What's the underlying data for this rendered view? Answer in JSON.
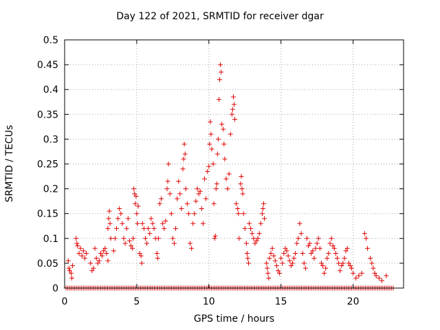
{
  "chart_data": {
    "type": "scatter",
    "title": "Day 122 of 2021, SRMTID for receiver dgar",
    "xlabel": "GPS time / hours",
    "ylabel": "SRMTID / TECUs",
    "xlim": [
      0,
      23.5
    ],
    "ylim": [
      0,
      0.5
    ],
    "xticks": [
      0,
      5,
      10,
      15,
      20
    ],
    "yticks": [
      0,
      0.05,
      0.1,
      0.15,
      0.2,
      0.25,
      0.3,
      0.35,
      0.4,
      0.45,
      0.5
    ],
    "ytick_labels": [
      "0",
      "0.05",
      "0.1",
      "0.15",
      "0.2",
      "0.25",
      "0.3",
      "0.35",
      "0.4",
      "0.45",
      "0.5"
    ],
    "grid": true,
    "marker": "+",
    "color": "#e00000",
    "series": [
      {
        "name": "SRMTID",
        "points": [
          [
            0.25,
            0.055
          ],
          [
            0.3,
            0.04
          ],
          [
            0.35,
            0.035
          ],
          [
            0.45,
            0.03
          ],
          [
            0.5,
            0.02
          ],
          [
            0.55,
            0.045
          ],
          [
            0.8,
            0.1
          ],
          [
            0.85,
            0.09
          ],
          [
            0.9,
            0.085
          ],
          [
            1.0,
            0.07
          ],
          [
            1.1,
            0.08
          ],
          [
            1.2,
            0.065
          ],
          [
            1.3,
            0.075
          ],
          [
            1.4,
            0.06
          ],
          [
            1.5,
            0.07
          ],
          [
            1.8,
            0.05
          ],
          [
            1.9,
            0.035
          ],
          [
            2.0,
            0.04
          ],
          [
            2.1,
            0.08
          ],
          [
            2.2,
            0.06
          ],
          [
            2.3,
            0.05
          ],
          [
            2.4,
            0.055
          ],
          [
            2.5,
            0.07
          ],
          [
            2.6,
            0.065
          ],
          [
            2.7,
            0.075
          ],
          [
            2.8,
            0.08
          ],
          [
            2.9,
            0.07
          ],
          [
            3.0,
            0.055
          ],
          [
            3.0,
            0.12
          ],
          [
            3.05,
            0.14
          ],
          [
            3.1,
            0.155
          ],
          [
            3.15,
            0.13
          ],
          [
            3.2,
            0.1
          ],
          [
            3.4,
            0.075
          ],
          [
            3.5,
            0.1
          ],
          [
            3.6,
            0.12
          ],
          [
            3.7,
            0.14
          ],
          [
            3.8,
            0.16
          ],
          [
            3.9,
            0.15
          ],
          [
            4.0,
            0.13
          ],
          [
            4.1,
            0.1
          ],
          [
            4.2,
            0.09
          ],
          [
            4.3,
            0.12
          ],
          [
            4.4,
            0.14
          ],
          [
            4.5,
            0.095
          ],
          [
            4.6,
            0.085
          ],
          [
            4.7,
            0.08
          ],
          [
            4.75,
            0.1
          ],
          [
            4.8,
            0.2
          ],
          [
            4.85,
            0.19
          ],
          [
            4.9,
            0.17
          ],
          [
            4.95,
            0.185
          ],
          [
            5.0,
            0.15
          ],
          [
            5.05,
            0.13
          ],
          [
            5.1,
            0.165
          ],
          [
            5.2,
            0.07
          ],
          [
            5.3,
            0.065
          ],
          [
            5.35,
            0.05
          ],
          [
            5.4,
            0.13
          ],
          [
            5.5,
            0.12
          ],
          [
            5.6,
            0.1
          ],
          [
            5.7,
            0.09
          ],
          [
            5.8,
            0.12
          ],
          [
            5.9,
            0.11
          ],
          [
            6.0,
            0.14
          ],
          [
            6.1,
            0.13
          ],
          [
            6.2,
            0.12
          ],
          [
            6.3,
            0.1
          ],
          [
            6.4,
            0.07
          ],
          [
            6.45,
            0.06
          ],
          [
            6.5,
            0.1
          ],
          [
            6.6,
            0.17
          ],
          [
            6.7,
            0.18
          ],
          [
            6.8,
            0.13
          ],
          [
            6.9,
            0.12
          ],
          [
            7.0,
            0.135
          ],
          [
            7.1,
            0.2
          ],
          [
            7.15,
            0.215
          ],
          [
            7.2,
            0.25
          ],
          [
            7.3,
            0.19
          ],
          [
            7.4,
            0.15
          ],
          [
            7.5,
            0.1
          ],
          [
            7.6,
            0.09
          ],
          [
            7.7,
            0.12
          ],
          [
            7.8,
            0.18
          ],
          [
            7.9,
            0.215
          ],
          [
            8.0,
            0.19
          ],
          [
            8.1,
            0.16
          ],
          [
            8.2,
            0.24
          ],
          [
            8.25,
            0.26
          ],
          [
            8.3,
            0.29
          ],
          [
            8.35,
            0.27
          ],
          [
            8.4,
            0.2
          ],
          [
            8.5,
            0.17
          ],
          [
            8.6,
            0.15
          ],
          [
            8.7,
            0.09
          ],
          [
            8.8,
            0.08
          ],
          [
            8.9,
            0.13
          ],
          [
            9.0,
            0.15
          ],
          [
            9.1,
            0.175
          ],
          [
            9.2,
            0.2
          ],
          [
            9.3,
            0.19
          ],
          [
            9.4,
            0.195
          ],
          [
            9.5,
            0.16
          ],
          [
            9.6,
            0.13
          ],
          [
            9.7,
            0.22
          ],
          [
            9.8,
            0.18
          ],
          [
            9.9,
            0.235
          ],
          [
            10.0,
            0.245
          ],
          [
            10.05,
            0.29
          ],
          [
            10.1,
            0.335
          ],
          [
            10.15,
            0.31
          ],
          [
            10.2,
            0.28
          ],
          [
            10.3,
            0.25
          ],
          [
            10.35,
            0.17
          ],
          [
            10.4,
            0.1
          ],
          [
            10.45,
            0.105
          ],
          [
            10.5,
            0.2
          ],
          [
            10.55,
            0.21
          ],
          [
            10.6,
            0.27
          ],
          [
            10.65,
            0.3
          ],
          [
            10.7,
            0.38
          ],
          [
            10.75,
            0.42
          ],
          [
            10.8,
            0.45
          ],
          [
            10.85,
            0.435
          ],
          [
            10.9,
            0.33
          ],
          [
            11.0,
            0.32
          ],
          [
            11.05,
            0.29
          ],
          [
            11.1,
            0.26
          ],
          [
            11.2,
            0.22
          ],
          [
            11.3,
            0.2
          ],
          [
            11.4,
            0.23
          ],
          [
            11.5,
            0.31
          ],
          [
            11.6,
            0.35
          ],
          [
            11.65,
            0.36
          ],
          [
            11.7,
            0.385
          ],
          [
            11.75,
            0.37
          ],
          [
            11.8,
            0.34
          ],
          [
            11.9,
            0.17
          ],
          [
            12.0,
            0.16
          ],
          [
            12.05,
            0.15
          ],
          [
            12.1,
            0.1
          ],
          [
            12.2,
            0.21
          ],
          [
            12.25,
            0.225
          ],
          [
            12.3,
            0.2
          ],
          [
            12.35,
            0.19
          ],
          [
            12.4,
            0.15
          ],
          [
            12.5,
            0.12
          ],
          [
            12.6,
            0.09
          ],
          [
            12.65,
            0.07
          ],
          [
            12.7,
            0.06
          ],
          [
            12.75,
            0.05
          ],
          [
            12.8,
            0.13
          ],
          [
            12.9,
            0.12
          ],
          [
            13.0,
            0.11
          ],
          [
            13.1,
            0.1
          ],
          [
            13.2,
            0.09
          ],
          [
            13.3,
            0.095
          ],
          [
            13.4,
            0.1
          ],
          [
            13.5,
            0.11
          ],
          [
            13.6,
            0.13
          ],
          [
            13.7,
            0.15
          ],
          [
            13.75,
            0.16
          ],
          [
            13.8,
            0.17
          ],
          [
            13.85,
            0.14
          ],
          [
            14.0,
            0.05
          ],
          [
            14.05,
            0.04
          ],
          [
            14.1,
            0.03
          ],
          [
            14.15,
            0.02
          ],
          [
            14.2,
            0.06
          ],
          [
            14.3,
            0.07
          ],
          [
            14.4,
            0.08
          ],
          [
            14.5,
            0.065
          ],
          [
            14.6,
            0.055
          ],
          [
            14.7,
            0.045
          ],
          [
            14.8,
            0.035
          ],
          [
            14.9,
            0.03
          ],
          [
            15.0,
            0.06
          ],
          [
            15.1,
            0.05
          ],
          [
            15.2,
            0.07
          ],
          [
            15.3,
            0.08
          ],
          [
            15.4,
            0.075
          ],
          [
            15.5,
            0.065
          ],
          [
            15.6,
            0.055
          ],
          [
            15.7,
            0.045
          ],
          [
            15.8,
            0.05
          ],
          [
            15.9,
            0.06
          ],
          [
            16.0,
            0.07
          ],
          [
            16.1,
            0.09
          ],
          [
            16.2,
            0.1
          ],
          [
            16.3,
            0.13
          ],
          [
            16.4,
            0.11
          ],
          [
            16.5,
            0.07
          ],
          [
            16.6,
            0.05
          ],
          [
            16.7,
            0.04
          ],
          [
            16.8,
            0.1
          ],
          [
            16.9,
            0.085
          ],
          [
            17.0,
            0.09
          ],
          [
            17.1,
            0.07
          ],
          [
            17.2,
            0.075
          ],
          [
            17.3,
            0.06
          ],
          [
            17.4,
            0.08
          ],
          [
            17.5,
            0.09
          ],
          [
            17.6,
            0.1
          ],
          [
            17.7,
            0.08
          ],
          [
            17.8,
            0.05
          ],
          [
            17.9,
            0.045
          ],
          [
            18.0,
            0.03
          ],
          [
            18.1,
            0.04
          ],
          [
            18.2,
            0.06
          ],
          [
            18.3,
            0.07
          ],
          [
            18.4,
            0.09
          ],
          [
            18.5,
            0.1
          ],
          [
            18.6,
            0.085
          ],
          [
            18.7,
            0.08
          ],
          [
            18.8,
            0.07
          ],
          [
            18.9,
            0.06
          ],
          [
            19.0,
            0.05
          ],
          [
            19.1,
            0.035
          ],
          [
            19.2,
            0.045
          ],
          [
            19.3,
            0.05
          ],
          [
            19.4,
            0.06
          ],
          [
            19.5,
            0.075
          ],
          [
            19.6,
            0.08
          ],
          [
            19.7,
            0.05
          ],
          [
            19.8,
            0.045
          ],
          [
            19.9,
            0.04
          ],
          [
            20.0,
            0.03
          ],
          [
            20.2,
            0.02
          ],
          [
            20.4,
            0.025
          ],
          [
            20.6,
            0.03
          ],
          [
            20.8,
            0.11
          ],
          [
            20.9,
            0.1
          ],
          [
            21.0,
            0.08
          ],
          [
            21.2,
            0.06
          ],
          [
            21.3,
            0.05
          ],
          [
            21.4,
            0.04
          ],
          [
            21.5,
            0.03
          ],
          [
            21.6,
            0.025
          ],
          [
            21.8,
            0.02
          ],
          [
            22.0,
            0.015
          ],
          [
            22.3,
            0.025
          ]
        ]
      },
      {
        "name": "zero",
        "x_start": 0.1,
        "x_end": 22.85,
        "x_step": 0.12,
        "y": 0
      }
    ]
  }
}
